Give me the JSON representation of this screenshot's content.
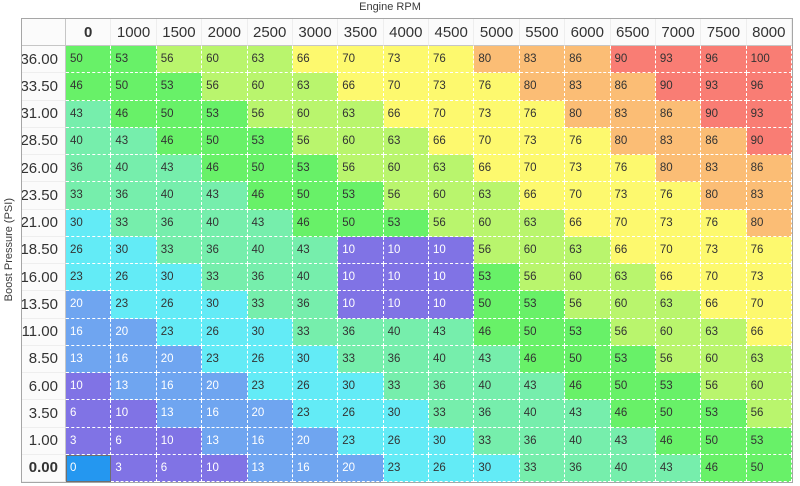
{
  "axis": {
    "x": "Engine RPM",
    "y": "Boost Pressure (PSI)"
  },
  "table": {
    "column_headers": [
      "0",
      "1000",
      "1500",
      "2000",
      "2500",
      "3000",
      "3500",
      "4000",
      "4500",
      "5000",
      "5500",
      "6000",
      "6500",
      "7000",
      "7500",
      "8000"
    ],
    "row_headers": [
      "36.00",
      "33.50",
      "31.00",
      "28.50",
      "26.00",
      "23.50",
      "21.00",
      "18.50",
      "16.00",
      "13.50",
      "11.00",
      "8.50",
      "6.00",
      "3.50",
      "1.00",
      "0.00"
    ],
    "rows": [
      [
        50,
        53,
        56,
        60,
        63,
        66,
        70,
        73,
        76,
        80,
        83,
        86,
        90,
        93,
        96,
        100
      ],
      [
        46,
        50,
        53,
        56,
        60,
        63,
        66,
        70,
        73,
        76,
        80,
        83,
        86,
        90,
        93,
        96
      ],
      [
        43,
        46,
        50,
        53,
        56,
        60,
        63,
        66,
        70,
        73,
        76,
        80,
        83,
        86,
        90,
        93
      ],
      [
        40,
        43,
        46,
        50,
        53,
        56,
        60,
        63,
        66,
        70,
        73,
        76,
        80,
        83,
        86,
        90
      ],
      [
        36,
        40,
        43,
        46,
        50,
        53,
        56,
        60,
        63,
        66,
        70,
        73,
        76,
        80,
        83,
        86
      ],
      [
        33,
        36,
        40,
        43,
        46,
        50,
        53,
        56,
        60,
        63,
        66,
        70,
        73,
        76,
        80,
        83
      ],
      [
        30,
        33,
        36,
        40,
        43,
        46,
        50,
        53,
        56,
        60,
        63,
        66,
        70,
        73,
        76,
        80
      ],
      [
        26,
        30,
        33,
        36,
        40,
        43,
        10,
        10,
        10,
        56,
        60,
        63,
        66,
        70,
        73,
        76
      ],
      [
        23,
        26,
        30,
        33,
        36,
        40,
        10,
        10,
        10,
        53,
        56,
        60,
        63,
        66,
        70,
        73
      ],
      [
        20,
        23,
        26,
        30,
        33,
        36,
        10,
        10,
        10,
        50,
        53,
        56,
        60,
        63,
        66,
        70
      ],
      [
        16,
        20,
        23,
        26,
        30,
        33,
        36,
        40,
        43,
        46,
        50,
        53,
        56,
        60,
        63,
        66
      ],
      [
        13,
        16,
        20,
        23,
        26,
        30,
        33,
        36,
        40,
        43,
        46,
        50,
        53,
        56,
        60,
        63
      ],
      [
        10,
        13,
        16,
        20,
        23,
        26,
        30,
        33,
        36,
        40,
        43,
        46,
        50,
        53,
        56,
        60
      ],
      [
        6,
        10,
        13,
        16,
        20,
        23,
        26,
        30,
        33,
        36,
        40,
        43,
        46,
        50,
        53,
        56
      ],
      [
        3,
        6,
        10,
        13,
        16,
        20,
        23,
        26,
        30,
        33,
        36,
        40,
        43,
        46,
        50,
        53
      ],
      [
        0,
        3,
        6,
        10,
        13,
        16,
        20,
        23,
        26,
        30,
        33,
        36,
        40,
        43,
        46,
        50
      ]
    ],
    "selected": {
      "row": "0.00",
      "column": "0",
      "value": 0
    }
  },
  "colors": {
    "grid_border": "#a6a6a6",
    "header_separator": "#c6c6c6",
    "cell_dash": "#ffffff",
    "bands": [
      {
        "min": 0,
        "max": 0,
        "bg": "#2497f0",
        "text": "#ffffff"
      },
      {
        "min": 1,
        "max": 12,
        "bg": "#8073e5",
        "text": "#ffffff"
      },
      {
        "min": 13,
        "max": 22,
        "bg": "#6fa5f0",
        "text": "#ffffff"
      },
      {
        "min": 23,
        "max": 32,
        "bg": "#63ebf6",
        "text": "#333333"
      },
      {
        "min": 33,
        "max": 45,
        "bg": "#76eeac",
        "text": "#333333"
      },
      {
        "min": 46,
        "max": 55,
        "bg": "#68f168",
        "text": "#333333"
      },
      {
        "min": 56,
        "max": 65,
        "bg": "#b9f56d",
        "text": "#333333"
      },
      {
        "min": 66,
        "max": 79,
        "bg": "#fdf96e",
        "text": "#333333"
      },
      {
        "min": 80,
        "max": 89,
        "bg": "#fbbd75",
        "text": "#333333"
      },
      {
        "min": 90,
        "max": 100,
        "bg": "#f97d74",
        "text": "#333333"
      }
    ]
  }
}
